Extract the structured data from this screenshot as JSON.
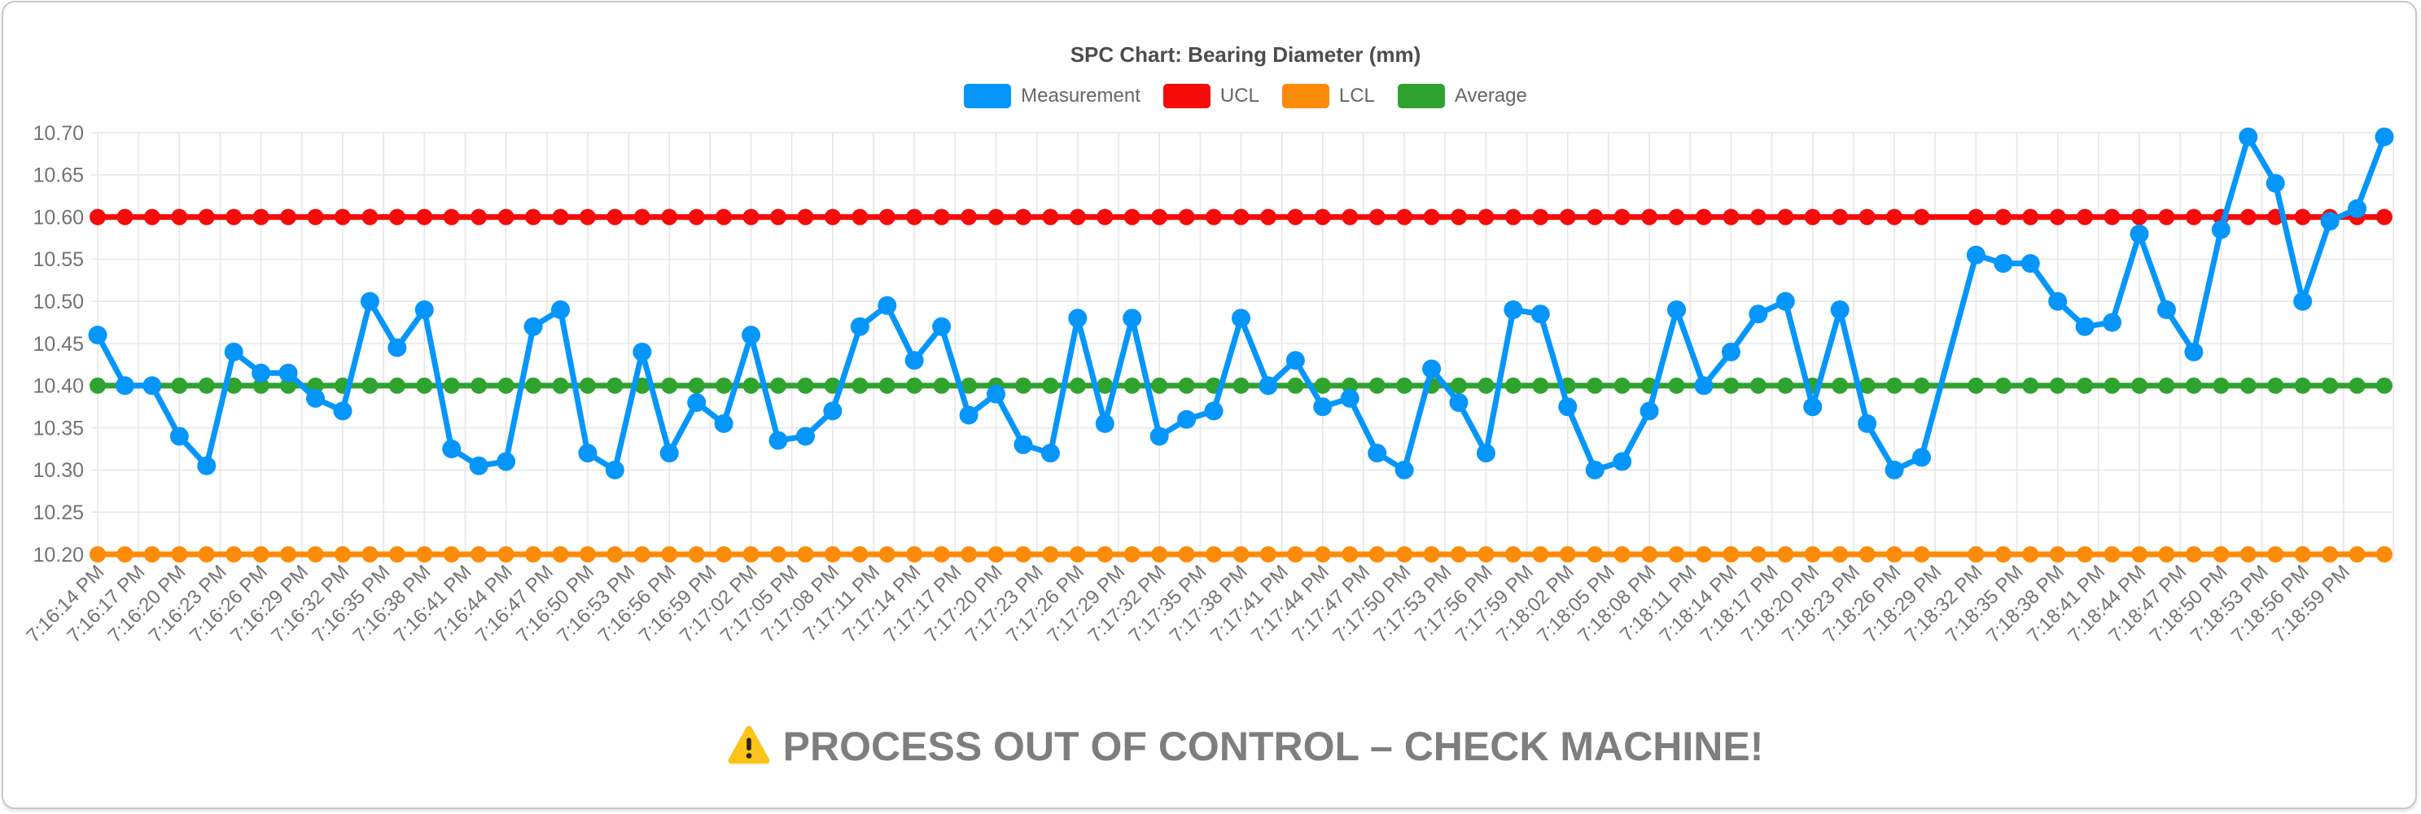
{
  "header": {
    "title": "SPC Chart: Bearing Diameter (mm)"
  },
  "warning": {
    "icon": "warning-triangle-icon",
    "icon_color": "#fcc419",
    "text": "PROCESS OUT OF CONTROL – CHECK MACHINE!"
  },
  "colors": {
    "grid": "#e7e7e7",
    "axis_text": "#737373",
    "title_text": "#4d4d4d",
    "legend_text": "#666666",
    "card_border": "#c9c9c9"
  },
  "chart_data": {
    "type": "line",
    "title": "SPC Chart: Bearing Diameter (mm)",
    "xlabel": "",
    "ylabel": "",
    "ylim": [
      10.2,
      10.7
    ],
    "y_ticks": [
      10.2,
      10.25,
      10.3,
      10.35,
      10.4,
      10.45,
      10.5,
      10.55,
      10.6,
      10.65,
      10.7
    ],
    "grid": true,
    "legend_position": "top",
    "x_tick_interval_seconds": 3,
    "sample_interval_seconds": 2,
    "x_tick_labels": [
      "7:16:14 PM",
      "7:16:17 PM",
      "7:16:20 PM",
      "7:16:23 PM",
      "7:16:26 PM",
      "7:16:29 PM",
      "7:16:32 PM",
      "7:16:35 PM",
      "7:16:38 PM",
      "7:16:41 PM",
      "7:16:44 PM",
      "7:16:47 PM",
      "7:16:50 PM",
      "7:16:53 PM",
      "7:16:56 PM",
      "7:16:59 PM",
      "7:17:02 PM",
      "7:17:05 PM",
      "7:17:08 PM",
      "7:17:11 PM",
      "7:17:14 PM",
      "7:17:17 PM",
      "7:17:20 PM",
      "7:17:23 PM",
      "7:17:26 PM",
      "7:17:29 PM",
      "7:17:32 PM",
      "7:17:35 PM",
      "7:17:38 PM",
      "7:17:41 PM",
      "7:17:44 PM",
      "7:17:47 PM",
      "7:17:50 PM",
      "7:17:53 PM",
      "7:17:56 PM",
      "7:17:59 PM",
      "7:18:02 PM",
      "7:18:05 PM",
      "7:18:08 PM",
      "7:18:11 PM",
      "7:18:14 PM",
      "7:18:17 PM",
      "7:18:20 PM",
      "7:18:23 PM",
      "7:18:26 PM",
      "7:18:29 PM",
      "7:18:32 PM",
      "7:18:35 PM",
      "7:18:38 PM",
      "7:18:41 PM",
      "7:18:44 PM",
      "7:18:47 PM",
      "7:18:50 PM",
      "7:18:53 PM",
      "7:18:56 PM",
      "7:18:59 PM"
    ],
    "series": [
      {
        "name": "Measurement",
        "color": "#0596fc",
        "kind": "data",
        "points_t": [
          0,
          2,
          4,
          6,
          8,
          10,
          12,
          14,
          16,
          18,
          20,
          22,
          24,
          26,
          28,
          30,
          32,
          34,
          36,
          38,
          40,
          42,
          44,
          46,
          48,
          50,
          52,
          54,
          56,
          58,
          60,
          62,
          64,
          66,
          68,
          70,
          72,
          74,
          76,
          78,
          80,
          82,
          84,
          86,
          88,
          90,
          92,
          94,
          96,
          98,
          100,
          102,
          104,
          106,
          108,
          110,
          112,
          114,
          116,
          118,
          120,
          122,
          124,
          126,
          128,
          130,
          132,
          134,
          138,
          140,
          142,
          144,
          146,
          148,
          150,
          152,
          154,
          156,
          158,
          160,
          162,
          164,
          166,
          168
        ],
        "points_v": [
          10.46,
          10.4,
          10.4,
          10.34,
          10.305,
          10.44,
          10.415,
          10.415,
          10.385,
          10.37,
          10.5,
          10.445,
          10.49,
          10.325,
          10.305,
          10.31,
          10.47,
          10.49,
          10.32,
          10.3,
          10.44,
          10.32,
          10.38,
          10.355,
          10.46,
          10.335,
          10.34,
          10.37,
          10.47,
          10.495,
          10.43,
          10.47,
          10.365,
          10.39,
          10.33,
          10.32,
          10.48,
          10.355,
          10.48,
          10.34,
          10.36,
          10.37,
          10.48,
          10.4,
          10.43,
          10.375,
          10.385,
          10.32,
          10.3,
          10.42,
          10.38,
          10.32,
          10.49,
          10.485,
          10.375,
          10.3,
          10.31,
          10.37,
          10.49,
          10.4,
          10.44,
          10.485,
          10.5,
          10.375,
          10.49,
          10.355,
          10.3,
          10.315,
          10.555,
          10.545,
          10.545,
          10.5,
          10.47,
          10.475,
          10.58,
          10.49,
          10.44,
          10.585,
          10.695,
          10.64,
          10.5,
          10.595,
          10.61,
          10.695
        ]
      },
      {
        "name": "UCL",
        "color": "#f60b0b",
        "kind": "limit",
        "value": 10.6
      },
      {
        "name": "LCL",
        "color": "#fc8b09",
        "kind": "limit",
        "value": 10.2
      },
      {
        "name": "Average",
        "color": "#2ea32e",
        "kind": "limit",
        "value": 10.4
      }
    ]
  }
}
